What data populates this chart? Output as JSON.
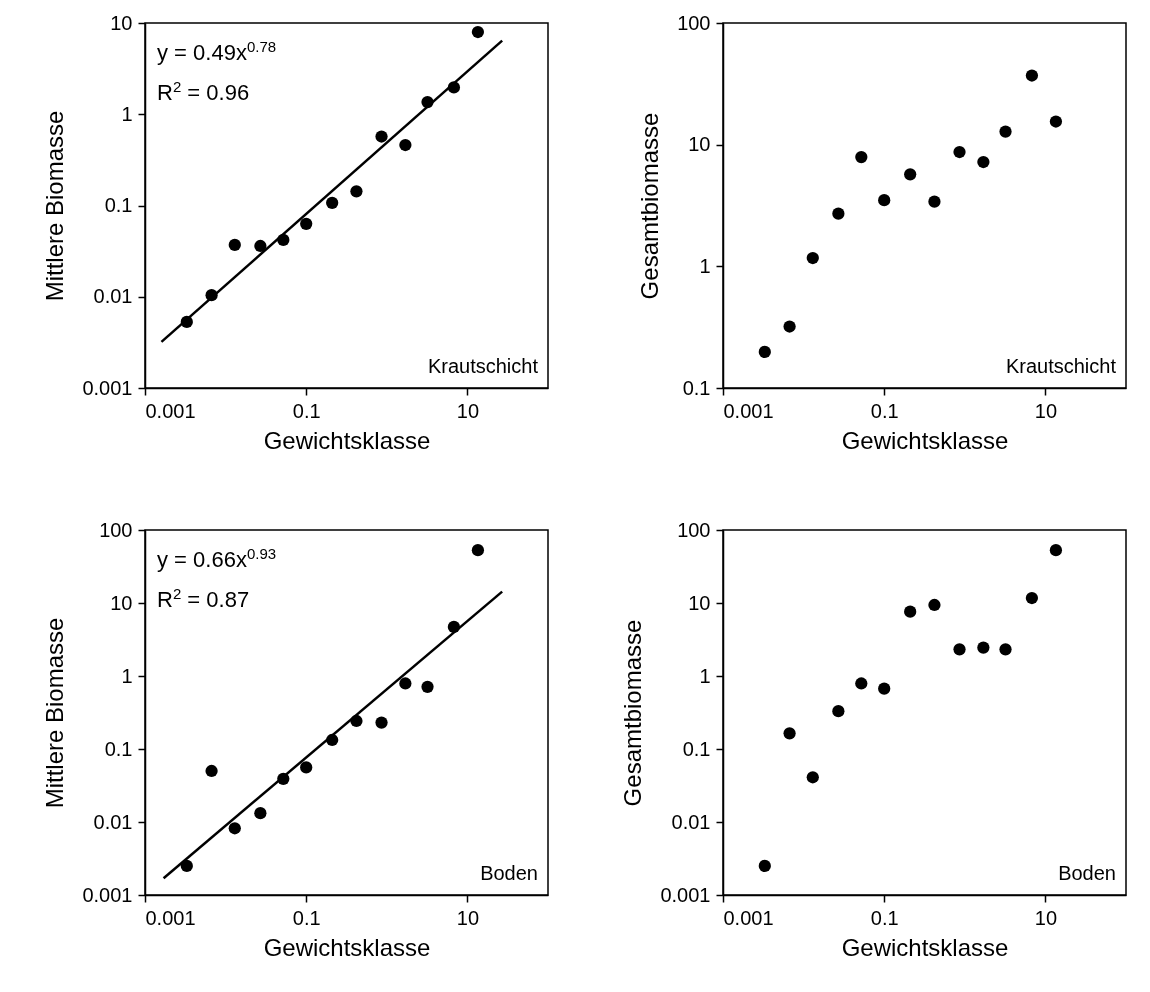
{
  "chart_data": [
    {
      "type": "scatter",
      "xlabel": "Gewichtsklasse",
      "ylabel": "Mittlere Biomasse",
      "log": "xy",
      "xlim": [
        0.001,
        100
      ],
      "xticks": [
        0.001,
        0.1,
        10
      ],
      "ylim": [
        0.001,
        10
      ],
      "yticks": [
        0.001,
        0.01,
        0.1,
        1,
        10
      ],
      "annotations": [
        "y = 0.49x$^{0.78}$",
        "R$^{2}$ = 0.96",
        "Krautschicht"
      ],
      "series": [
        {
          "marker": "circle",
          "color": "#000000",
          "x": [
            0.0033,
            0.0067,
            0.013,
            0.027,
            0.052,
            0.1,
            0.21,
            0.42,
            0.86,
            1.7,
            3.2,
            6.8,
            13.5
          ],
          "values": [
            0.0053,
            0.0104,
            0.037,
            0.036,
            0.042,
            0.063,
            0.107,
            0.143,
            0.57,
            0.46,
            1.36,
            1.97,
            7.96
          ]
        },
        {
          "type": "line",
          "color": "#000000",
          "x": [
            0.0016,
            27
          ],
          "values": [
            0.0032,
            6.4
          ]
        }
      ]
    },
    {
      "type": "scatter",
      "xlabel": "Gewichtsklasse",
      "ylabel": "Gesamtbiomasse",
      "log": "xy",
      "marker": "circle",
      "xlim": [
        0.001,
        100
      ],
      "xticks": [
        0.001,
        0.1,
        10
      ],
      "ylim": [
        0.1,
        100
      ],
      "yticks": [
        0.1,
        1,
        10,
        100
      ],
      "annotations": [
        "Krautschicht"
      ],
      "series": [
        {
          "color": "#000000",
          "x": [
            0.0033,
            0.0067,
            0.013,
            0.027,
            0.052,
            0.1,
            0.21,
            0.42,
            0.86,
            1.7,
            3.2,
            6.8,
            13.5
          ],
          "values": [
            0.198,
            0.32,
            1.17,
            2.71,
            7.9,
            3.5,
            5.7,
            3.4,
            8.7,
            7.2,
            12.8,
            37,
            15.5
          ]
        }
      ]
    },
    {
      "type": "scatter",
      "xlabel": "Gewichtsklasse",
      "ylabel": "Mittlere Biomasse",
      "log": "xy",
      "xlim": [
        0.001,
        100
      ],
      "xticks": [
        0.001,
        0.1,
        10
      ],
      "ylim": [
        0.001,
        100
      ],
      "yticks": [
        0.001,
        0.01,
        0.1,
        1,
        10,
        100
      ],
      "annotations": [
        "y = 0.66x$^{0.93}$",
        "R$^{2}$ = 0.87",
        "Boden"
      ],
      "series": [
        {
          "marker": "circle",
          "color": "#000000",
          "x": [
            0.0033,
            0.0067,
            0.013,
            0.027,
            0.052,
            0.1,
            0.21,
            0.42,
            0.86,
            1.7,
            3.2,
            6.8,
            13.5
          ],
          "values": [
            0.0025,
            0.05,
            0.0082,
            0.0132,
            0.039,
            0.056,
            0.133,
            0.242,
            0.23,
            0.79,
            0.71,
            4.7,
            53
          ]
        },
        {
          "type": "line",
          "color": "#000000",
          "x": [
            0.0017,
            27
          ],
          "values": [
            0.0017,
            14.3
          ]
        }
      ]
    },
    {
      "type": "scatter",
      "xlabel": "Gewichtsklasse",
      "ylabel": "Gesamtbiomasse",
      "log": "xy",
      "marker": "circle",
      "xlim": [
        0.001,
        100
      ],
      "xticks": [
        0.001,
        0.1,
        10
      ],
      "ylim": [
        0.001,
        100
      ],
      "yticks": [
        0.001,
        0.01,
        0.1,
        1,
        10,
        100
      ],
      "annotations": [
        "Boden"
      ],
      "series": [
        {
          "color": "#000000",
          "x": [
            0.0033,
            0.0067,
            0.013,
            0.027,
            0.052,
            0.1,
            0.21,
            0.42,
            0.86,
            1.7,
            3.2,
            6.8,
            13.5
          ],
          "values": [
            0.0025,
            0.164,
            0.041,
            0.33,
            0.79,
            0.67,
            7.6,
            9.4,
            2.32,
            2.45,
            2.32,
            11.7,
            53
          ]
        }
      ]
    }
  ]
}
